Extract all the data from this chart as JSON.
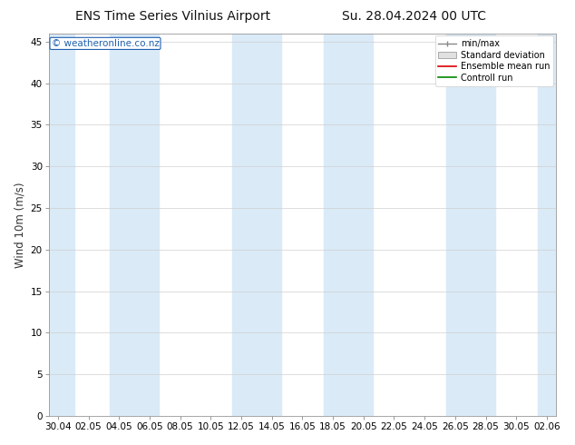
{
  "title_left": "ENS Time Series Vilnius Airport",
  "title_right": "Su. 28.04.2024 00 UTC",
  "ylabel": "Wind 10m (m/s)",
  "watermark": "© weatheronline.co.nz",
  "ylim": [
    0,
    46
  ],
  "yticks": [
    0,
    5,
    10,
    15,
    20,
    25,
    30,
    35,
    40,
    45
  ],
  "xtick_labels": [
    "30.04",
    "02.05",
    "04.05",
    "06.05",
    "08.05",
    "10.05",
    "12.05",
    "14.05",
    "16.05",
    "18.05",
    "20.05",
    "22.05",
    "24.05",
    "26.05",
    "28.05",
    "30.05",
    "02.06"
  ],
  "bg_color": "#ffffff",
  "plot_bg_color": "#ffffff",
  "shaded_band_color": "#daeaf7",
  "legend_labels": [
    "min/max",
    "Standard deviation",
    "Ensemble mean run",
    "Controll run"
  ],
  "title_fontsize": 10,
  "tick_fontsize": 7.5,
  "ylabel_fontsize": 8.5,
  "watermark_fontsize": 7.5
}
